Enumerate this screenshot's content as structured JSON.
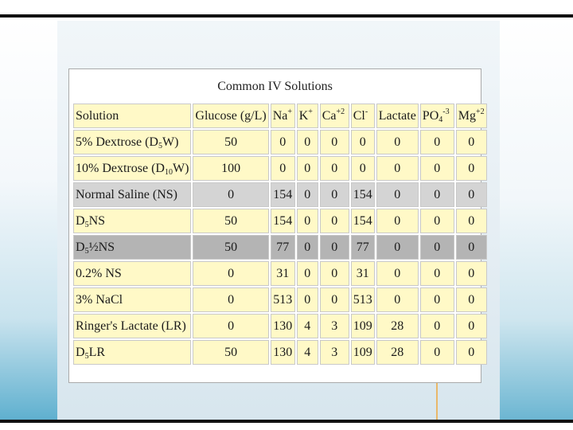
{
  "table": {
    "caption": "Common IV Solutions",
    "headers": {
      "solution": "Solution",
      "glucose": "Glucose (g/L)",
      "na": "Na",
      "na_sup": "+",
      "k": "K",
      "k_sup": "+",
      "ca": "Ca",
      "ca_sup": "+2",
      "cl": "Cl",
      "cl_sup": "-",
      "lactate": "Lactate",
      "po4": "PO",
      "po4_sub": "4",
      "po4_sup": "-3",
      "mg": "Mg",
      "mg_sup": "+2"
    },
    "rows": [
      {
        "name_pre": "5% Dextrose (D",
        "name_sub": "5",
        "name_post": "W)",
        "glucose": "50",
        "na": "0",
        "k": "0",
        "ca": "0",
        "cl": "0",
        "lactate": "0",
        "po4": "0",
        "mg": "0"
      },
      {
        "name_pre": "10% Dextrose (D",
        "name_sub": "10",
        "name_post": "W)",
        "glucose": "100",
        "na": "0",
        "k": "0",
        "ca": "0",
        "cl": "0",
        "lactate": "0",
        "po4": "0",
        "mg": "0"
      },
      {
        "name_pre": "Normal Saline (NS)",
        "name_sub": "",
        "name_post": "",
        "glucose": "0",
        "na": "154",
        "k": "0",
        "ca": "0",
        "cl": "154",
        "lactate": "0",
        "po4": "0",
        "mg": "0"
      },
      {
        "name_pre": "D",
        "name_sub": "5",
        "name_post": "NS",
        "glucose": "50",
        "na": "154",
        "k": "0",
        "ca": "0",
        "cl": "154",
        "lactate": "0",
        "po4": "0",
        "mg": "0"
      },
      {
        "name_pre": "D",
        "name_sub": "5",
        "name_post": "½NS",
        "glucose": "50",
        "na": "77",
        "k": "0",
        "ca": "0",
        "cl": "77",
        "lactate": "0",
        "po4": "0",
        "mg": "0"
      },
      {
        "name_pre": "0.2% NS",
        "name_sub": "",
        "name_post": "",
        "glucose": "0",
        "na": "31",
        "k": "0",
        "ca": "0",
        "cl": "31",
        "lactate": "0",
        "po4": "0",
        "mg": "0"
      },
      {
        "name_pre": "3% NaCl",
        "name_sub": "",
        "name_post": "",
        "glucose": "0",
        "na": "513",
        "k": "0",
        "ca": "0",
        "cl": "513",
        "lactate": "0",
        "po4": "0",
        "mg": "0"
      },
      {
        "name_pre": "Ringer's Lactate (LR)",
        "name_sub": "",
        "name_post": "",
        "glucose": "0",
        "na": "130",
        "k": "4",
        "ca": "3",
        "cl": "109",
        "lactate": "28",
        "po4": "0",
        "mg": "0"
      },
      {
        "name_pre": "D",
        "name_sub": "5",
        "name_post": "LR",
        "glucose": "50",
        "na": "130",
        "k": "4",
        "ca": "3",
        "cl": "109",
        "lactate": "28",
        "po4": "0",
        "mg": "0"
      }
    ]
  }
}
